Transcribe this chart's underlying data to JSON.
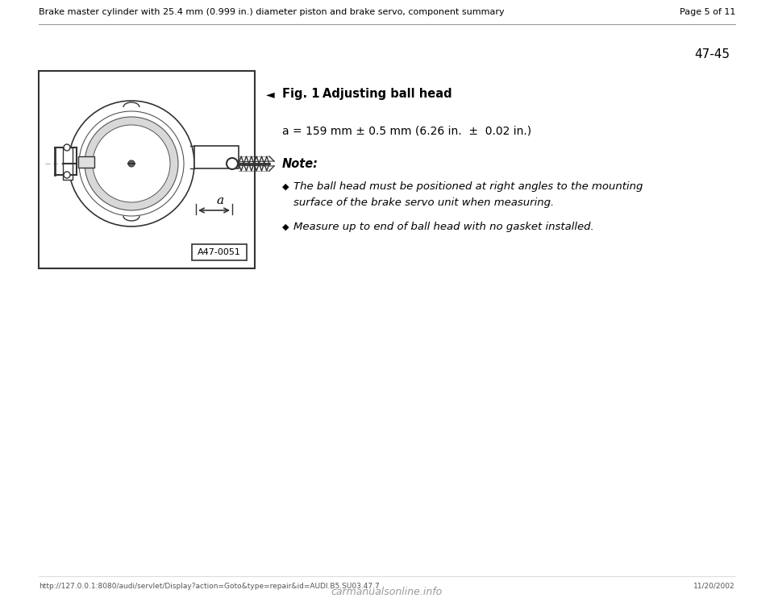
{
  "bg_color": "#ffffff",
  "header_text": "Brake master cylinder with 25.4 mm (0.999 in.) diameter piston and brake servo, component summary",
  "page_text": "Page 5 of 11",
  "page_number_right": "47-45",
  "fig_title_part1": "Fig. 1",
  "fig_title_part2": "Adjusting ball head",
  "measurement": "a = 159 mm ± 0.5 mm (6.26 in.  ±  0.02 in.)",
  "note_label": "Note:",
  "bullet1_line1": "The ball head must be positioned at right angles to the mounting",
  "bullet1_line2": "surface of the brake servo unit when measuring.",
  "bullet2": "Measure up to end of ball head with no gasket installed.",
  "figure_label": "A47-0051",
  "footer_url": "http://127.0.0.1:8080/audi/servlet/Display?action=Goto&type=repair&id=AUDI.B5.SU03.47.7",
  "footer_date": "11/20/2002",
  "footer_logo": "carmanualsonline.info",
  "text_color": "#000000",
  "gray_line_color": "#999999",
  "dark_color": "#333333"
}
